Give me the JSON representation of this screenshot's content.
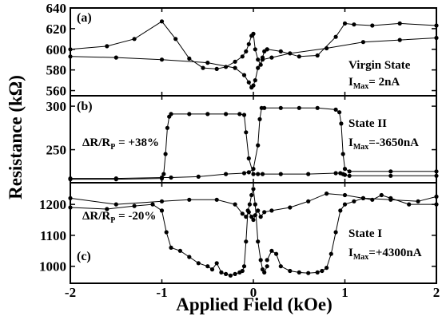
{
  "chart_data": {
    "type": "line",
    "xlabel": "Applied Field (kOe)",
    "ylabel": "Resistance (kΩ)",
    "x_ticks": [
      "-2",
      "-1",
      "0",
      "1",
      "2"
    ],
    "xlim": [
      -2,
      2
    ],
    "grid": false,
    "panels": [
      {
        "tag": "(a)",
        "ylim": [
          555,
          640
        ],
        "y_ticks": [
          560,
          580,
          600,
          620,
          640
        ],
        "annotation": {
          "state": "Virgin State",
          "imax_base": "I",
          "imax_sub": "Max",
          "imax_value": "= 2nA"
        },
        "series": [
          {
            "x": [
              -2.0,
              -1.6,
              -1.3,
              -1.0,
              -0.85,
              -0.7,
              -0.55,
              -0.4,
              -0.3,
              -0.2,
              -0.12,
              -0.08,
              -0.05,
              -0.02,
              0.0,
              0.02,
              0.05,
              0.08,
              0.1,
              0.12,
              0.15
            ],
            "y": [
              600,
              603,
              610,
              627,
              610,
              591,
              582,
              581,
              583,
              588,
              593,
              598,
              605,
              613,
              615,
              600,
              590,
              585,
              592,
              598,
              600
            ]
          },
          {
            "x": [
              0.15,
              0.3,
              0.5,
              0.7,
              0.9,
              1.0,
              1.1,
              1.3,
              1.6,
              2.0
            ],
            "y": [
              600,
              598,
              593,
              594,
              612,
              625,
              624,
              623,
              625,
              623
            ]
          },
          {
            "x": [
              -2.0,
              -1.5,
              -1.0,
              -0.5,
              -0.2,
              -0.1,
              -0.05,
              -0.02,
              0.0,
              0.02,
              0.05,
              0.1,
              0.2,
              0.4,
              0.8,
              1.2,
              1.6,
              2.0
            ],
            "y": [
              593,
              592,
              590,
              587,
              582,
              575,
              568,
              563,
              565,
              570,
              582,
              590,
              592,
              596,
              601,
              607,
              609,
              611
            ]
          }
        ]
      },
      {
        "tag": "(b)",
        "ylim": [
          212,
          312
        ],
        "y_ticks": [
          250,
          300
        ],
        "annotation": {
          "state": "State II",
          "ratio_base": "ΔR/R",
          "ratio_sub": "P",
          "ratio_value": " = +38%",
          "imax_base": "I",
          "imax_sub": "Max",
          "imax_value": "=-3650nA"
        },
        "series": [
          {
            "x": [
              -2.0,
              -1.5,
              -1.0,
              -0.98,
              -0.96,
              -0.94,
              -0.92,
              -0.9,
              -0.7,
              -0.5,
              -0.3,
              -0.15,
              -0.1,
              -0.08,
              -0.05,
              0.0,
              0.05,
              0.1,
              0.3,
              0.6,
              0.9,
              0.95,
              0.98,
              1.0,
              1.05,
              1.5,
              2.0
            ],
            "y": [
              216,
              216,
              217,
              222,
              245,
              275,
              288,
              291,
              291,
              291,
              291,
              291,
              290,
              270,
              240,
              222,
              222,
              222,
              222,
              222,
              223,
              223,
              222,
              221,
              220,
              220,
              220
            ]
          },
          {
            "x": [
              2.0,
              1.5,
              1.05,
              1.0,
              0.98,
              0.96,
              0.94,
              0.9,
              0.7,
              0.5,
              0.3,
              0.12,
              0.09,
              0.07,
              0.05,
              0.0,
              -0.05,
              -0.1,
              -0.3,
              -0.6,
              -0.9,
              -1.0,
              -1.5,
              -2.0
            ],
            "y": [
              225,
              225,
              225,
              228,
              245,
              280,
              293,
              296,
              298,
              298,
              298,
              298,
              298,
              285,
              255,
              228,
              224,
              223,
              222,
              219,
              218,
              218,
              217,
              217
            ]
          }
        ]
      },
      {
        "tag": "(c)",
        "ylim": [
          945,
          1270
        ],
        "y_ticks": [
          1000,
          1100,
          1200
        ],
        "annotation": {
          "state": "State I",
          "ratio_base": "ΔR/R",
          "ratio_sub": "P",
          "ratio_value": " = -20%",
          "imax_base": "I",
          "imax_sub": "Max",
          "imax_value": "=+4300nA"
        },
        "series": [
          {
            "x": [
              -2.0,
              -1.6,
              -1.3,
              -1.1,
              -1.0,
              -0.95,
              -0.9,
              -0.8,
              -0.7,
              -0.6,
              -0.5,
              -0.45,
              -0.4,
              -0.35,
              -0.3,
              -0.25,
              -0.2,
              -0.15,
              -0.12,
              -0.1,
              -0.08,
              -0.06,
              -0.04,
              -0.02,
              0.0,
              0.02,
              0.05,
              0.08,
              0.1,
              0.12,
              0.15
            ],
            "y": [
              1190,
              1185,
              1195,
              1200,
              1180,
              1110,
              1060,
              1050,
              1030,
              1010,
              1000,
              990,
              1010,
              980,
              975,
              970,
              975,
              980,
              985,
              1000,
              1080,
              1180,
              1200,
              1230,
              1250,
              1200,
              1080,
              1020,
              990,
              980,
              1000
            ]
          },
          {
            "x": [
              0.15,
              0.2,
              0.25,
              0.3,
              0.4,
              0.5,
              0.6,
              0.7,
              0.75,
              0.8,
              0.85,
              0.9,
              0.95,
              1.0,
              1.1,
              1.2,
              1.3,
              1.4,
              1.5,
              1.7,
              2.0
            ],
            "y": [
              1020,
              1050,
              1040,
              1000,
              985,
              980,
              978,
              980,
              985,
              995,
              1040,
              1110,
              1180,
              1200,
              1210,
              1220,
              1215,
              1230,
              1220,
              1200,
              1200
            ]
          },
          {
            "x": [
              -2.0,
              -1.5,
              -1.0,
              -0.7,
              -0.4,
              -0.2,
              -0.12,
              -0.08,
              -0.05,
              -0.02,
              0.0,
              0.02,
              0.05,
              0.08,
              0.12,
              0.2,
              0.4,
              0.6,
              0.8,
              1.0,
              1.2,
              1.5,
              1.8,
              2.0
            ],
            "y": [
              1220,
              1200,
              1210,
              1215,
              1215,
              1200,
              1170,
              1160,
              1175,
              1160,
              1150,
              1165,
              1180,
              1160,
              1175,
              1180,
              1190,
              1210,
              1235,
              1230,
              1220,
              1215,
              1210,
              1225
            ]
          }
        ]
      }
    ]
  }
}
